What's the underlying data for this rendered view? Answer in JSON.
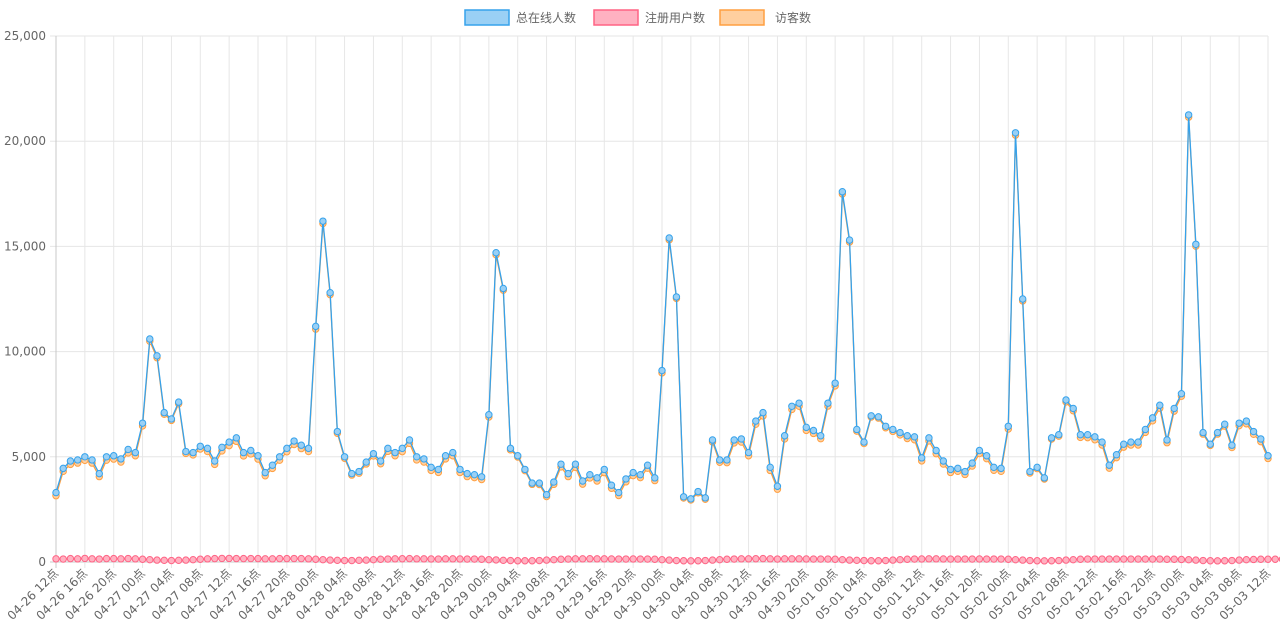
{
  "chart_data": {
    "type": "line",
    "legend_position": "top",
    "grid": true,
    "ylim": [
      0,
      25000
    ],
    "y_ticks": [
      0,
      5000,
      10000,
      15000,
      20000,
      25000
    ],
    "y_tick_labels": [
      "0",
      "5,000",
      "10,000",
      "15,000",
      "20,000",
      "25,000"
    ],
    "x_tick_labels": [
      "04-26 12点",
      "04-26 16点",
      "04-26 20点",
      "04-27 00点",
      "04-27 04点",
      "04-27 08点",
      "04-27 12点",
      "04-27 16点",
      "04-27 20点",
      "04-28 00点",
      "04-28 04点",
      "04-28 08点",
      "04-28 12点",
      "04-28 16点",
      "04-28 20点",
      "04-29 00点",
      "04-29 04点",
      "04-29 08点",
      "04-29 12点",
      "04-29 16点",
      "04-29 20点",
      "04-30 00点",
      "04-30 04点",
      "04-30 08点",
      "04-30 12点",
      "04-30 16点",
      "04-30 20点",
      "05-01 00点",
      "05-01 04点",
      "05-01 08点",
      "05-01 12点",
      "05-01 16点",
      "05-01 20点",
      "05-02 00点",
      "05-02 04点",
      "05-02 08点",
      "05-02 12点",
      "05-02 16点",
      "05-02 20点",
      "05-03 00点",
      "05-03 04点",
      "05-03 08点",
      "05-03 12点"
    ],
    "series": [
      {
        "name": "总在线人数",
        "color": "#36a2eb",
        "fill": "#9ad0f5",
        "values": [
          3300,
          4450,
          4800,
          4850,
          5000,
          4850,
          4200,
          5000,
          5050,
          4900,
          5350,
          5200,
          6600,
          10600,
          9800,
          7100,
          6800,
          7600,
          5250,
          5200,
          5500,
          5400,
          4800,
          5450,
          5700,
          5900,
          5200,
          5300,
          5050,
          4250,
          4600,
          5000,
          5400,
          5750,
          5550,
          5400,
          11200,
          16200,
          12800,
          6200,
          5000,
          4200,
          4300,
          4750,
          5150,
          4800,
          5400,
          5200,
          5400,
          5800,
          5000,
          4900,
          4500,
          4400,
          5050,
          5200,
          4400,
          4200,
          4150,
          4050,
          7000,
          14700,
          13000,
          5400,
          5050,
          4400,
          3750,
          3750,
          3200,
          3800,
          4650,
          4200,
          4650,
          3850,
          4150,
          4000,
          4400,
          3650,
          3300,
          3950,
          4250,
          4150,
          4600,
          4000,
          9100,
          15400,
          12600,
          3100,
          3000,
          3350,
          3050,
          5800,
          4850,
          4850,
          5800,
          5850,
          5200,
          6700,
          7100,
          4500,
          3600,
          6000,
          7400,
          7550,
          6400,
          6250,
          6000,
          7550,
          8500,
          17600,
          15300,
          6300,
          5700,
          6950,
          6900,
          6450,
          6300,
          6150,
          6000,
          5950,
          4950,
          5900,
          5300,
          4800,
          4400,
          4450,
          4300,
          4700,
          5300,
          5050,
          4500,
          4450,
          6450,
          20400,
          12500,
          4300,
          4500,
          4000,
          5900,
          6050,
          7700,
          7300,
          6050,
          6050,
          5950,
          5700,
          4600,
          5100,
          5600,
          5700,
          5700,
          6300,
          6850,
          7450,
          5800,
          7300,
          8000,
          21250,
          15100,
          6150,
          5600,
          6150,
          6550,
          5550,
          6600,
          6700,
          6200,
          5850,
          5050
        ]
      },
      {
        "name": "注册用户数",
        "color": "#ff6384",
        "fill": "#ffb1c1",
        "values": [
          150,
          140,
          160,
          150,
          170,
          150,
          140,
          160,
          160,
          150,
          165,
          150,
          130,
          110,
          90,
          80,
          70,
          80,
          90,
          110,
          130,
          150,
          160,
          170,
          170,
          165,
          160,
          165,
          160,
          150,
          150,
          160,
          160,
          165,
          160,
          150,
          130,
          110,
          90,
          80,
          70,
          70,
          80,
          90,
          110,
          130,
          140,
          150,
          155,
          160,
          150,
          150,
          145,
          140,
          150,
          150,
          145,
          140,
          140,
          130,
          110,
          100,
          80,
          70,
          60,
          60,
          60,
          70,
          90,
          110,
          130,
          140,
          150,
          150,
          155,
          150,
          150,
          145,
          140,
          140,
          145,
          140,
          140,
          130,
          110,
          90,
          70,
          60,
          55,
          60,
          70,
          90,
          110,
          130,
          140,
          150,
          150,
          155,
          160,
          150,
          140,
          150,
          150,
          150,
          145,
          140,
          140,
          140,
          130,
          110,
          90,
          80,
          70,
          60,
          60,
          70,
          90,
          110,
          130,
          140,
          145,
          150,
          150,
          145,
          140,
          140,
          140,
          140,
          145,
          140,
          140,
          140,
          130,
          110,
          90,
          70,
          60,
          55,
          60,
          70,
          90,
          110,
          130,
          140,
          140,
          140,
          140,
          140,
          140,
          140,
          140,
          140,
          140,
          140,
          130,
          130,
          120,
          110,
          90,
          70,
          60,
          55,
          60,
          70,
          90,
          110,
          120,
          130,
          130,
          130,
          130
        ]
      },
      {
        "name": "访客数",
        "color": "#ff9f40",
        "fill": "#ffcf9f",
        "values": [
          3150,
          4310,
          4640,
          4700,
          4830,
          4700,
          4060,
          4840,
          4890,
          4750,
          5185,
          5050,
          6470,
          10490,
          9710,
          7020,
          6730,
          7520,
          5160,
          5090,
          5370,
          5250,
          4640,
          5280,
          5530,
          5735,
          5040,
          5135,
          4890,
          4100,
          4450,
          4840,
          5240,
          5585,
          5390,
          5250,
          11070,
          16090,
          12710,
          6120,
          4930,
          4130,
          4220,
          4660,
          5040,
          4670,
          5260,
          5050,
          5245,
          5640,
          4850,
          4750,
          4355,
          4260,
          4900,
          5050,
          4255,
          4060,
          4010,
          3920,
          6890,
          14600,
          12920,
          5330,
          4990,
          4340,
          3690,
          3680,
          3110,
          3690,
          4520,
          4060,
          4500,
          3700,
          3995,
          3850,
          4250,
          3505,
          3160,
          3810,
          4105,
          4010,
          4460,
          3870,
          8990,
          15310,
          12530,
          3040,
          2945,
          3290,
          2980,
          5710,
          4740,
          4720,
          5660,
          5700,
          5050,
          6545,
          6940,
          4350,
          3460,
          5850,
          7250,
          7400,
          6255,
          6110,
          5860,
          7410,
          8370,
          17490,
          15210,
          6220,
          5630,
          6890,
          6840,
          6380,
          6210,
          6040,
          5870,
          5810,
          4805,
          5755,
          5150,
          4655,
          4255,
          4310,
          4160,
          4560,
          5155,
          4910,
          4360,
          4310,
          6320,
          20290,
          12410,
          4230,
          4440,
          3945,
          5840,
          5980,
          7610,
          7190,
          5920,
          5910,
          5810,
          5560,
          4460,
          4960,
          5460,
          5560,
          5560,
          6160,
          6710,
          7310,
          5670,
          7170,
          7880,
          21140,
          15010,
          6080,
          5540,
          6080,
          6460,
          5440,
          6480,
          6570,
          6070,
          5720,
          4920
        ]
      }
    ]
  }
}
